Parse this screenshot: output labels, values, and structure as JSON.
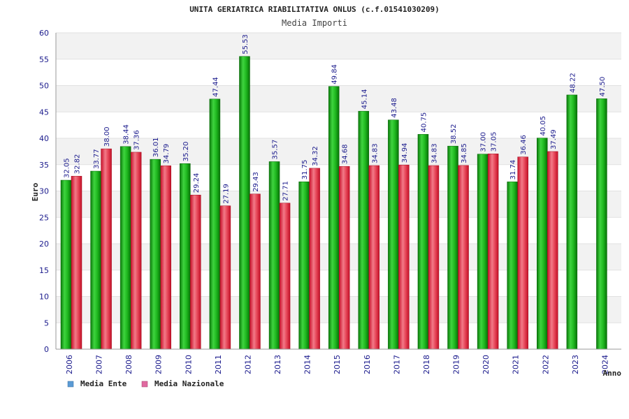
{
  "chart_data": {
    "type": "bar",
    "title": "UNITA GERIATRICA RIABILITATIVA ONLUS (c.f.01541030209)",
    "subtitle": "Media Importi",
    "xlabel": "Anno",
    "ylabel": "Euro",
    "ylim": [
      0,
      60
    ],
    "yticks": [
      0,
      5,
      10,
      15,
      20,
      25,
      30,
      35,
      40,
      45,
      50,
      55,
      60
    ],
    "grid": true,
    "legend_position": "bottom-left",
    "categories": [
      "2006",
      "2007",
      "2008",
      "2009",
      "2010",
      "2011",
      "2012",
      "2013",
      "2014",
      "2015",
      "2016",
      "2017",
      "2018",
      "2019",
      "2020",
      "2021",
      "2022",
      "2023",
      "2024"
    ],
    "series": [
      {
        "name": "Media Ente",
        "color": "#1faa1f",
        "legend_color": "#5b9bd5",
        "values": [
          32.05,
          33.77,
          38.44,
          36.01,
          35.2,
          47.44,
          55.53,
          35.57,
          31.75,
          49.84,
          45.14,
          43.48,
          40.75,
          38.52,
          37.0,
          31.74,
          40.05,
          48.22,
          47.5
        ],
        "labels": [
          "32.05",
          "33.77",
          "38.44",
          "36.01",
          "35.20",
          "47.44",
          "55.53",
          "35.57",
          "31.75",
          "49.84",
          "45.14",
          "43.48",
          "40.75",
          "38.52",
          "37.00",
          "31.74",
          "40.05",
          "48.22",
          "47.50"
        ]
      },
      {
        "name": "Media Nazionale",
        "color": "#e0263a",
        "legend_color": "#e06aa0",
        "values": [
          32.82,
          38.0,
          37.36,
          34.79,
          29.24,
          27.19,
          29.43,
          27.71,
          34.32,
          34.68,
          34.83,
          34.94,
          34.83,
          34.85,
          37.05,
          36.46,
          37.49,
          null,
          null
        ],
        "labels": [
          "32.82",
          "38.00",
          "37.36",
          "34.79",
          "29.24",
          "27.19",
          "29.43",
          "27.71",
          "34.32",
          "34.68",
          "34.83",
          "34.94",
          "34.83",
          "34.85",
          "37.05",
          "36.46",
          "37.49",
          null,
          null
        ]
      }
    ]
  }
}
